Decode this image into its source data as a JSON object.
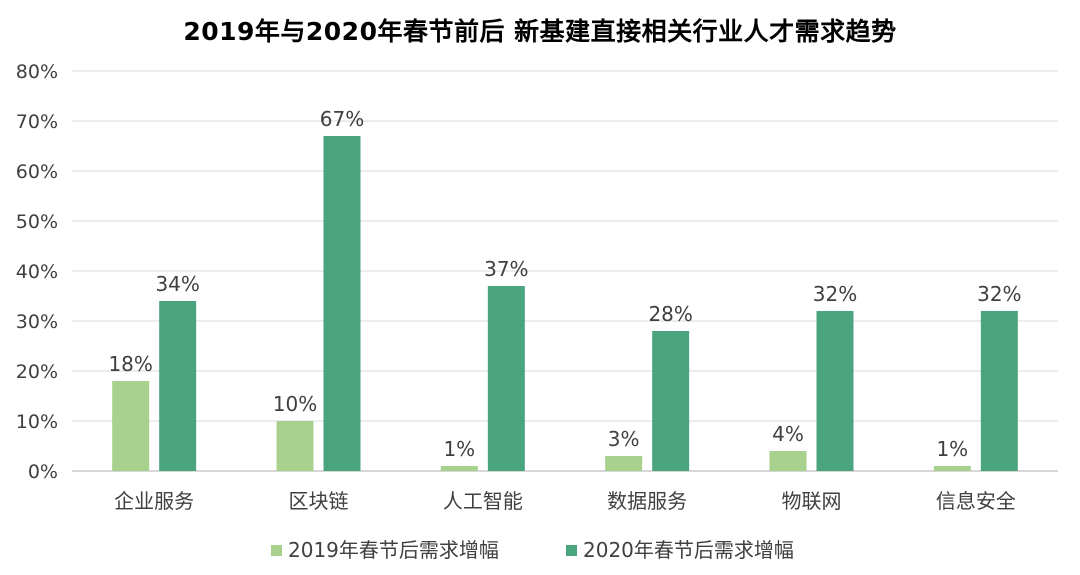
{
  "title": "2019年与2020年春节前后  新基建直接相关行业人才需求趋势",
  "colors": {
    "series_2019": "#a9d18e",
    "series_2020": "#4aa57e",
    "grid": "#d9d9d9",
    "axis": "#bfbfbf",
    "text": "#404040"
  },
  "chart_data": {
    "type": "bar",
    "title": "2019年与2020年春节前后  新基建直接相关行业人才需求趋势",
    "xlabel": "",
    "ylabel": "",
    "categories": [
      "企业服务",
      "区块链",
      "人工智能",
      "数据服务",
      "物联网",
      "信息安全"
    ],
    "series": [
      {
        "name": "2019年春节后需求增幅",
        "values": [
          18,
          10,
          1,
          3,
          4,
          1
        ],
        "labels": [
          "18%",
          "10%",
          "1%",
          "3%",
          "4%",
          "1%"
        ]
      },
      {
        "name": "2020年春节后需求增幅",
        "values": [
          34,
          67,
          37,
          28,
          32,
          32
        ],
        "labels": [
          "34%",
          "67%",
          "37%",
          "28%",
          "32%",
          "32%"
        ]
      }
    ],
    "ylim": [
      0,
      80
    ],
    "yticks": [
      0,
      10,
      20,
      30,
      40,
      50,
      60,
      70,
      80
    ],
    "ytick_labels": [
      "0%",
      "10%",
      "20%",
      "30%",
      "40%",
      "50%",
      "60%",
      "70%",
      "80%"
    ],
    "grid": true,
    "legend_position": "bottom"
  }
}
